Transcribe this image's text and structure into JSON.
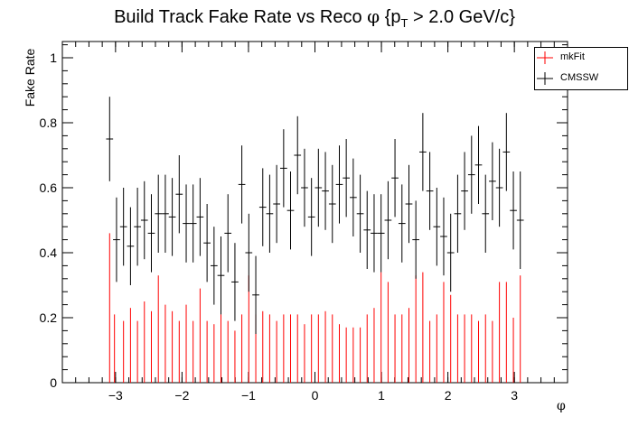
{
  "chart_data": {
    "type": "scatter",
    "title_main": "Build Track Fake Rate vs Reco ",
    "title_phi": "φ",
    "title_brace_open": " {p",
    "title_sub": "T",
    "title_rest": " > 2.0 GeV/c}",
    "xlabel": "φ",
    "ylabel": "Fake Rate",
    "xlim": [
      -3.8,
      3.8
    ],
    "ylim": [
      0,
      1.05
    ],
    "x_ticks": [
      -3,
      -2,
      -1,
      0,
      1,
      2,
      3
    ],
    "x_tick_labels": [
      "−3",
      "−2",
      "−1",
      "0",
      "1",
      "2",
      "3"
    ],
    "y_ticks": [
      0,
      0.2,
      0.4,
      0.6,
      0.8,
      1
    ],
    "y_tick_labels": [
      "0",
      "0.2",
      "0.4",
      "0.6",
      "0.8",
      "1"
    ],
    "legend_position": "top-right",
    "x_bin_width": 0.1047,
    "series": [
      {
        "name": "mkFit",
        "color": "#ff0000",
        "x": [
          -3.089,
          -3.016,
          -2.88,
          -2.775,
          -2.67,
          -2.566,
          -2.461,
          -2.356,
          -2.251,
          -2.147,
          -2.042,
          -1.937,
          -1.833,
          -1.728,
          -1.623,
          -1.518,
          -1.414,
          -1.309,
          -1.204,
          -1.1,
          -0.995,
          -0.89,
          -0.785,
          -0.681,
          -0.576,
          -0.471,
          -0.367,
          -0.262,
          -0.157,
          -0.052,
          0.052,
          0.157,
          0.262,
          0.367,
          0.471,
          0.576,
          0.681,
          0.785,
          0.89,
          0.995,
          1.1,
          1.204,
          1.309,
          1.414,
          1.518,
          1.623,
          1.728,
          1.833,
          1.937,
          2.042,
          2.147,
          2.251,
          2.356,
          2.461,
          2.566,
          2.67,
          2.775,
          2.88,
          2.985,
          3.089
        ],
        "y": [
          0.46,
          0.21,
          0.19,
          0.23,
          0.19,
          0.25,
          0.22,
          0.33,
          0.24,
          0.22,
          0.19,
          0.24,
          0.19,
          0.29,
          0.19,
          0.18,
          0.21,
          0.19,
          0.16,
          0.21,
          0.33,
          0.21,
          0.22,
          0.21,
          0.19,
          0.21,
          0.21,
          0.21,
          0.18,
          0.21,
          0.21,
          0.22,
          0.21,
          0.18,
          0.17,
          0.17,
          0.17,
          0.21,
          0.23,
          0.34,
          0.31,
          0.21,
          0.21,
          0.23,
          0.33,
          0.34,
          0.19,
          0.21,
          0.31,
          0.27,
          0.21,
          0.21,
          0.21,
          0.19,
          0.21,
          0.19,
          0.31,
          0.31,
          0.2,
          0.33
        ]
      },
      {
        "name": "CMSSW",
        "color": "#000000",
        "x": [
          -3.089,
          -2.985,
          -2.88,
          -2.775,
          -2.67,
          -2.566,
          -2.461,
          -2.356,
          -2.251,
          -2.147,
          -2.042,
          -1.937,
          -1.833,
          -1.728,
          -1.623,
          -1.518,
          -1.414,
          -1.309,
          -1.204,
          -1.1,
          -0.995,
          -0.89,
          -0.785,
          -0.681,
          -0.576,
          -0.471,
          -0.367,
          -0.262,
          -0.157,
          -0.052,
          0.052,
          0.157,
          0.262,
          0.367,
          0.471,
          0.576,
          0.681,
          0.785,
          0.89,
          0.995,
          1.1,
          1.204,
          1.309,
          1.414,
          1.518,
          1.623,
          1.728,
          1.833,
          1.937,
          2.042,
          2.147,
          2.251,
          2.356,
          2.461,
          2.566,
          2.67,
          2.775,
          2.88,
          2.985,
          3.089
        ],
        "y": [
          0.75,
          0.44,
          0.48,
          0.42,
          0.48,
          0.5,
          0.46,
          0.52,
          0.52,
          0.51,
          0.58,
          0.49,
          0.49,
          0.51,
          0.43,
          0.36,
          0.33,
          0.46,
          0.31,
          0.61,
          0.4,
          0.27,
          0.54,
          0.52,
          0.55,
          0.66,
          0.53,
          0.7,
          0.6,
          0.51,
          0.6,
          0.59,
          0.55,
          0.61,
          0.63,
          0.57,
          0.52,
          0.47,
          0.46,
          0.46,
          0.5,
          0.63,
          0.49,
          0.55,
          0.44,
          0.71,
          0.59,
          0.48,
          0.45,
          0.4,
          0.52,
          0.59,
          0.64,
          0.67,
          0.52,
          0.62,
          0.6,
          0.71,
          0.53,
          0.5
        ],
        "yerr": [
          0.13,
          0.13,
          0.12,
          0.12,
          0.12,
          0.12,
          0.12,
          0.12,
          0.12,
          0.12,
          0.12,
          0.12,
          0.12,
          0.12,
          0.12,
          0.12,
          0.12,
          0.12,
          0.12,
          0.12,
          0.12,
          0.12,
          0.12,
          0.12,
          0.12,
          0.12,
          0.12,
          0.12,
          0.12,
          0.12,
          0.12,
          0.12,
          0.12,
          0.12,
          0.12,
          0.12,
          0.12,
          0.12,
          0.12,
          0.12,
          0.12,
          0.12,
          0.12,
          0.12,
          0.12,
          0.12,
          0.12,
          0.12,
          0.12,
          0.12,
          0.12,
          0.12,
          0.12,
          0.12,
          0.12,
          0.12,
          0.12,
          0.12,
          0.12,
          0.15
        ]
      }
    ]
  }
}
